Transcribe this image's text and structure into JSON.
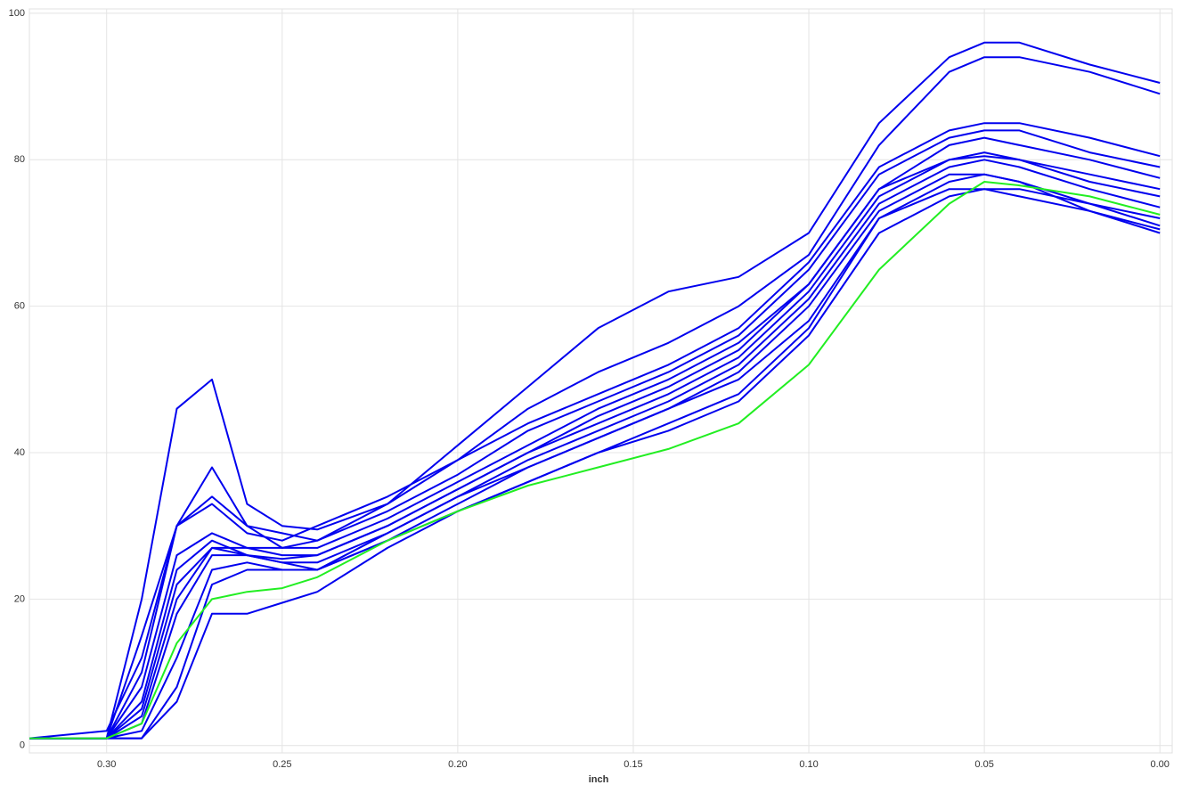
{
  "chart_data": {
    "type": "line",
    "x_label": "inch",
    "x": [
      0.322,
      0.3,
      0.29,
      0.28,
      0.27,
      0.26,
      0.25,
      0.24,
      0.22,
      0.2,
      0.18,
      0.16,
      0.14,
      0.12,
      0.1,
      0.08,
      0.06,
      0.05,
      0.04,
      0.02,
      0.0
    ],
    "xlim": [
      0.322,
      -0.0035
    ],
    "xticks": [
      {
        "value": 0.3,
        "label": "0.30"
      },
      {
        "value": 0.25,
        "label": "0.25"
      },
      {
        "value": 0.2,
        "label": "0.20"
      },
      {
        "value": 0.15,
        "label": "0.15"
      },
      {
        "value": 0.1,
        "label": "0.10"
      },
      {
        "value": 0.05,
        "label": "0.05"
      },
      {
        "value": 0,
        "label": "0.00"
      }
    ],
    "ylim": [
      -1,
      100.6
    ],
    "yticks": [
      0,
      20,
      40,
      60,
      80,
      100
    ],
    "grid": true,
    "series": [
      {
        "color": "#0000ee",
        "values": [
          1,
          1,
          20,
          46,
          50,
          33,
          30,
          29.5,
          33,
          41,
          49,
          57,
          62,
          64,
          70,
          85,
          94,
          96,
          96,
          93,
          90.5
        ]
      },
      {
        "color": "#0000ee",
        "values": [
          1,
          1,
          10,
          30,
          38,
          30,
          27,
          28,
          33,
          39,
          46,
          51,
          55,
          60,
          67,
          82,
          92,
          94,
          94,
          92,
          89
        ]
      },
      {
        "color": "#0000ee",
        "values": [
          1,
          1,
          15,
          30,
          33,
          29,
          28,
          30,
          34,
          39,
          44,
          48,
          52,
          57,
          66,
          79,
          84,
          85,
          85,
          83,
          80.5
        ]
      },
      {
        "color": "#0000ee",
        "values": [
          1,
          2,
          12,
          30,
          34,
          30,
          29,
          28,
          32,
          37,
          43,
          47,
          51,
          56,
          65,
          78,
          83,
          84,
          84,
          81,
          79
        ]
      },
      {
        "color": "#0000ee",
        "values": [
          1,
          1,
          8,
          26,
          29,
          27,
          27,
          27,
          31,
          36,
          41,
          46,
          50,
          55,
          63,
          76,
          82,
          83,
          82,
          80,
          77.5
        ]
      },
      {
        "color": "#0000ee",
        "values": [
          1,
          1,
          6,
          24,
          28,
          26,
          25.5,
          26,
          30,
          35,
          40,
          45,
          49,
          54,
          63,
          76,
          80,
          81,
          80,
          78,
          76
        ]
      },
      {
        "color": "#0000ee",
        "values": [
          1,
          1,
          5,
          22,
          27,
          27,
          26,
          26,
          30,
          35,
          40,
          44,
          48,
          53,
          62,
          75,
          80,
          80.5,
          80,
          77,
          75
        ]
      },
      {
        "color": "#0000ee",
        "values": [
          1,
          1,
          3,
          18,
          26,
          26,
          25,
          25,
          29,
          34,
          39,
          43,
          47,
          52,
          61,
          74,
          79,
          80,
          79,
          76,
          73.5
        ]
      },
      {
        "color": "#0000ee",
        "values": [
          1,
          1,
          2,
          12,
          24,
          25,
          24,
          24,
          28,
          33,
          38,
          42,
          46,
          51,
          60,
          73,
          78,
          78,
          77,
          74,
          71
        ]
      },
      {
        "color": "#0000ee",
        "values": [
          1,
          1,
          1,
          8,
          22,
          24,
          24,
          24,
          29,
          34,
          38,
          42,
          46,
          50,
          58,
          72,
          77,
          78,
          77,
          73,
          70.5
        ]
      },
      {
        "color": "#0000ee",
        "values": [
          1,
          1,
          1,
          6,
          18,
          18,
          19.5,
          21,
          27,
          32,
          36,
          40,
          44,
          48,
          57,
          72,
          76,
          76,
          75,
          73,
          70
        ]
      },
      {
        "color": "#0000ee",
        "values": [
          1,
          1,
          4,
          20,
          27,
          26,
          25,
          24,
          28,
          32,
          36,
          40,
          43,
          47,
          56,
          70,
          75,
          76,
          76,
          74,
          72
        ]
      },
      {
        "color": "#22ee22",
        "values": [
          1,
          1,
          3,
          14,
          20,
          21,
          21.5,
          23,
          28,
          32,
          35.5,
          38,
          40.5,
          44,
          52,
          65,
          74,
          77,
          76.5,
          75,
          72.5
        ]
      }
    ]
  }
}
